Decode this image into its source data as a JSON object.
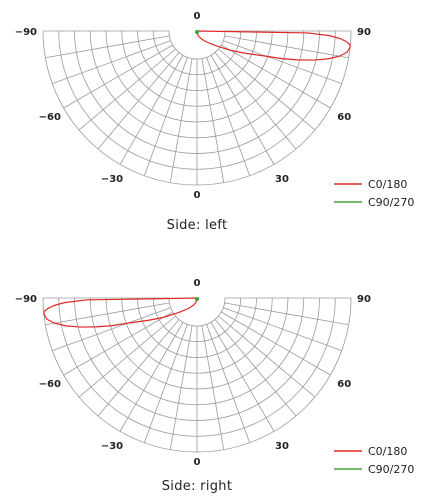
{
  "colors": {
    "grid": "#9a9a9a",
    "c0_180": "#e02828",
    "c90_270": "#3fa535",
    "text": "#222222"
  },
  "chart_data": [
    {
      "type": "polar",
      "title": "Side: left",
      "angle_unit": "degrees",
      "angle_range": [
        -90,
        90
      ],
      "angle_ticks": [
        -90,
        -60,
        -30,
        0,
        30,
        60,
        90
      ],
      "angle_tick_labels": [
        "−90",
        "−60",
        "−30",
        "0",
        "30",
        "60",
        "90"
      ],
      "radial_rings": 8,
      "angle_spacing": 10,
      "grid": true,
      "legend_position": "bottom-right",
      "series": [
        {
          "name": "C0/180",
          "color": "#e02828",
          "points": [
            [
              0,
              0
            ],
            [
              10,
              0.02
            ],
            [
              20,
              0.04
            ],
            [
              30,
              0.06
            ],
            [
              40,
              0.09
            ],
            [
              50,
              0.14
            ],
            [
              55,
              0.18
            ],
            [
              60,
              0.25
            ],
            [
              65,
              0.34
            ],
            [
              70,
              0.48
            ],
            [
              72,
              0.58
            ],
            [
              74,
              0.68
            ],
            [
              76,
              0.78
            ],
            [
              78,
              0.87
            ],
            [
              80,
              0.94
            ],
            [
              82,
              0.985
            ],
            [
              84,
              1.0
            ],
            [
              85,
              0.995
            ],
            [
              86,
              0.97
            ],
            [
              87,
              0.93
            ],
            [
              88,
              0.86
            ],
            [
              89,
              0.72
            ],
            [
              90,
              0.0
            ]
          ]
        },
        {
          "name": "C90/270",
          "color": "#3fa535",
          "points": [
            [
              -90,
              0.0
            ],
            [
              -45,
              0.008
            ],
            [
              0,
              0.015
            ],
            [
              45,
              0.008
            ],
            [
              90,
              0.0
            ]
          ]
        }
      ]
    },
    {
      "type": "polar",
      "title": "Side: right",
      "angle_unit": "degrees",
      "angle_range": [
        -90,
        90
      ],
      "angle_ticks": [
        -90,
        -60,
        -30,
        0,
        30,
        60,
        90
      ],
      "angle_tick_labels": [
        "−90",
        "−60",
        "−30",
        "0",
        "30",
        "60",
        "90"
      ],
      "radial_rings": 8,
      "angle_spacing": 10,
      "grid": true,
      "legend_position": "bottom-right",
      "series": [
        {
          "name": "C0/180",
          "color": "#e02828",
          "points": [
            [
              0,
              0
            ],
            [
              -10,
              0.02
            ],
            [
              -20,
              0.04
            ],
            [
              -30,
              0.06
            ],
            [
              -40,
              0.09
            ],
            [
              -50,
              0.14
            ],
            [
              -55,
              0.18
            ],
            [
              -60,
              0.25
            ],
            [
              -65,
              0.34
            ],
            [
              -70,
              0.48
            ],
            [
              -72,
              0.58
            ],
            [
              -74,
              0.68
            ],
            [
              -76,
              0.78
            ],
            [
              -78,
              0.87
            ],
            [
              -80,
              0.94
            ],
            [
              -82,
              0.985
            ],
            [
              -84,
              1.0
            ],
            [
              -85,
              0.995
            ],
            [
              -86,
              0.97
            ],
            [
              -87,
              0.93
            ],
            [
              -88,
              0.86
            ],
            [
              -89,
              0.72
            ],
            [
              -90,
              0.0
            ]
          ]
        },
        {
          "name": "C90/270",
          "color": "#3fa535",
          "points": [
            [
              -90,
              0.0
            ],
            [
              -45,
              0.008
            ],
            [
              0,
              0.015
            ],
            [
              45,
              0.008
            ],
            [
              90,
              0.0
            ]
          ]
        }
      ]
    }
  ]
}
